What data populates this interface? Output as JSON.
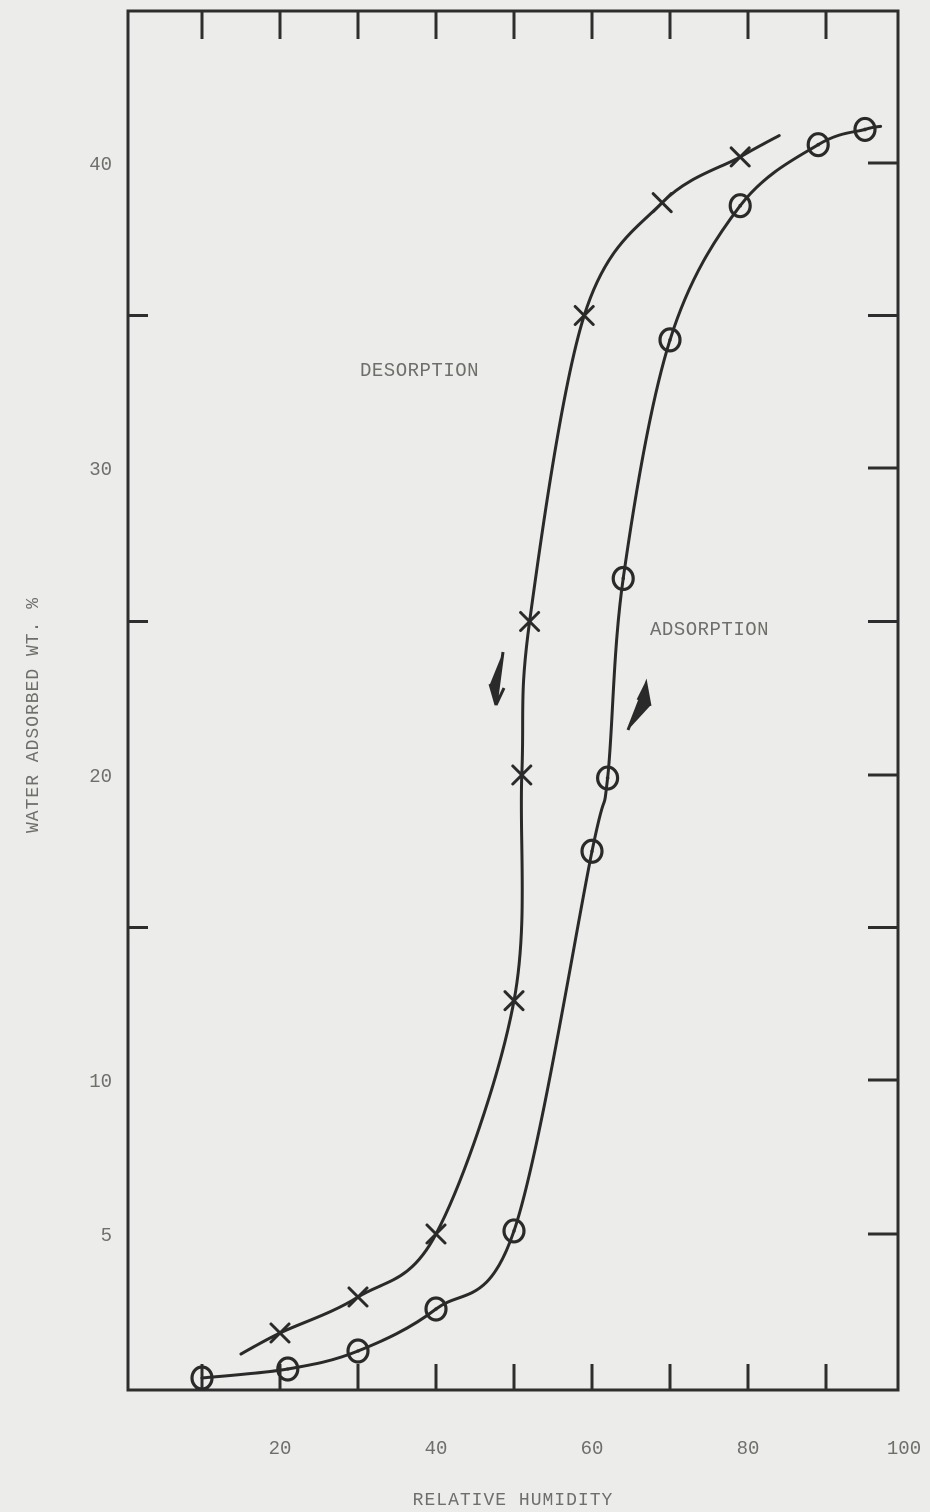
{
  "chart_data": {
    "type": "line",
    "title": "",
    "xlabel": "RELATIVE HUMIDITY",
    "ylabel": "WATER ADSORBED WT. %",
    "xlim": [
      0,
      100
    ],
    "ylim": [
      0,
      40
    ],
    "y_tick_values": [
      5,
      10,
      20,
      30,
      40
    ],
    "y_scale_note": "non-linear: 0-5 compressed, 5-10 and 10-40 spaced per tick",
    "xticks": [
      {
        "value": 20,
        "label": "20"
      },
      {
        "value": 40,
        "label": "40"
      },
      {
        "value": 60,
        "label": "60"
      },
      {
        "value": 80,
        "label": "80"
      },
      {
        "value": 100,
        "label": "100"
      }
    ],
    "yticks": [
      {
        "value": 5,
        "label": "5"
      },
      {
        "value": 10,
        "label": "10"
      },
      {
        "value": 20,
        "label": "20"
      },
      {
        "value": 30,
        "label": "30"
      },
      {
        "value": 40,
        "label": "40"
      }
    ],
    "grid": false,
    "series": [
      {
        "name": "DESORPTION",
        "marker": "x",
        "direction": "down",
        "points": [
          {
            "x": 20,
            "y": 1.7
          },
          {
            "x": 30,
            "y": 2.9
          },
          {
            "x": 40,
            "y": 5.0
          },
          {
            "x": 50,
            "y": 12.6
          },
          {
            "x": 51,
            "y": 20.0
          },
          {
            "x": 52,
            "y": 25.0
          },
          {
            "x": 59,
            "y": 35.0
          },
          {
            "x": 69,
            "y": 38.7
          },
          {
            "x": 79,
            "y": 40.2
          }
        ]
      },
      {
        "name": "ADSORPTION",
        "marker": "o",
        "direction": "up",
        "points": [
          {
            "x": 10,
            "y": 0.2
          },
          {
            "x": 21,
            "y": 0.5
          },
          {
            "x": 30,
            "y": 1.1
          },
          {
            "x": 40,
            "y": 2.5
          },
          {
            "x": 50,
            "y": 5.1
          },
          {
            "x": 60,
            "y": 17.5
          },
          {
            "x": 62,
            "y": 19.9
          },
          {
            "x": 64,
            "y": 26.4
          },
          {
            "x": 70,
            "y": 34.2
          },
          {
            "x": 79,
            "y": 38.6
          },
          {
            "x": 89,
            "y": 40.6
          },
          {
            "x": 95,
            "y": 41.1
          }
        ]
      }
    ]
  }
}
